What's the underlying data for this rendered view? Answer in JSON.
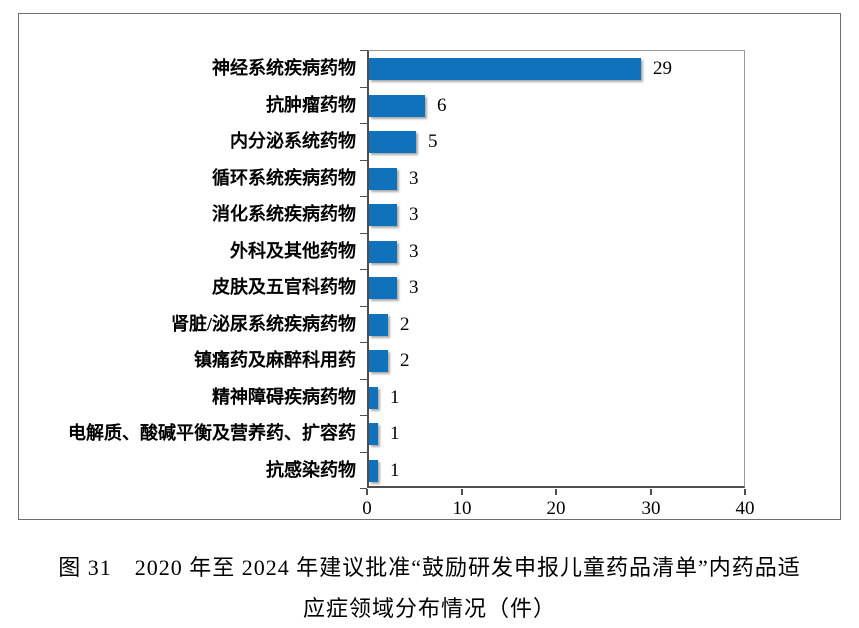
{
  "chart_data": {
    "type": "bar",
    "orientation": "horizontal",
    "title": "",
    "xlabel": "",
    "ylabel": "",
    "categories": [
      "神经系统疾病药物",
      "抗肿瘤药物",
      "内分泌系统药物",
      "循环系统疾病药物",
      "消化系统疾病药物",
      "外科及其他药物",
      "皮肤及五官科药物",
      "肾脏/泌尿系统疾病药物",
      "镇痛药及麻醉科用药",
      "精神障碍疾病药物",
      "电解质、酸碱平衡及营养药、扩容药",
      "抗感染药物"
    ],
    "values": [
      29,
      6,
      5,
      3,
      3,
      3,
      3,
      2,
      2,
      1,
      1,
      1
    ],
    "value_labels": [
      "29",
      "6",
      "5",
      "3",
      "3",
      "3",
      "3",
      "2",
      "2",
      "1",
      "1",
      "1"
    ],
    "xlim": [
      0,
      40
    ],
    "xticks": [
      "0",
      "10",
      "20",
      "30",
      "40"
    ],
    "bar_color": "#1172BC",
    "grid": false,
    "legend": false,
    "data_labels_position": "outside-end"
  },
  "caption": {
    "line1": "图 31　2020 年至 2024 年建议批准“鼓励研发申报儿童药品清单”内药品适",
    "line2": "应症领域分布情况（件）"
  }
}
